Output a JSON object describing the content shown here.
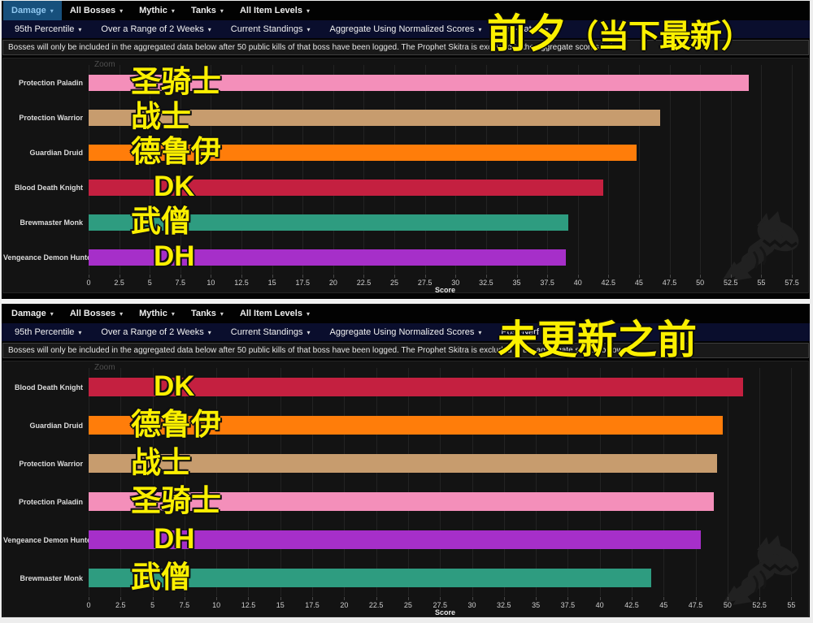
{
  "icons": {
    "caret_down": "▾",
    "watermark": "warcraftlogs-serpent-watermark"
  },
  "colors": {
    "nav_active_bg": "#17507C",
    "nav_active_text": "#8FC7F0",
    "nav_secondary_bg": "#0A0E2D",
    "annotation_yellow": "#FBF000",
    "chart_bg": "#131313"
  },
  "panels": [
    {
      "nav_primary": [
        {
          "label": "Damage",
          "active": true
        },
        {
          "label": "All Bosses",
          "active": false
        },
        {
          "label": "Mythic",
          "active": false
        },
        {
          "label": "Tanks",
          "active": false
        },
        {
          "label": "All Item Levels",
          "active": false
        }
      ],
      "nav_secondary": [
        "95th Percentile",
        "Over a Range of 2 Weeks",
        "Current Standings",
        "Aggregate Using Normalized Scores",
        "Pre-Patch"
      ],
      "notice": "Bosses will only be included in the aggregated data below after 50 public kills of that boss have been logged. The Prophet Skitra is excluded in the aggregate scores below.",
      "zoom_label": "Zoom",
      "overlay_title_parts": [
        "前夕",
        "（当下最新）"
      ]
    },
    {
      "nav_primary": [
        {
          "label": "Damage",
          "active": false
        },
        {
          "label": "All Bosses",
          "active": false
        },
        {
          "label": "Mythic",
          "active": false
        },
        {
          "label": "Tanks",
          "active": false
        },
        {
          "label": "All Item Levels",
          "active": false
        }
      ],
      "nav_secondary": [
        "95th Percentile",
        "Over a Range of 2 Weeks",
        "Current Standings",
        "Aggregate Using Normalized Scores",
        "Post-Nerf II"
      ],
      "notice": "Bosses will only be included in the aggregated data below after 50 public kills of that boss have been logged. The Prophet Skitra is excluded in the aggregate scores below.",
      "zoom_label": "Zoom",
      "overlay_title_parts": [
        "未更新之前"
      ]
    }
  ],
  "chart_data": [
    {
      "type": "bar",
      "orientation": "horizontal",
      "categories": [
        "Protection Paladin",
        "Protection Warrior",
        "Guardian Druid",
        "Blood Death Knight",
        "Brewmaster Monk",
        "Vengeance Demon Hunter"
      ],
      "values": [
        54.0,
        46.7,
        44.8,
        42.1,
        39.2,
        39.0
      ],
      "bar_colors": [
        "#F48FBA",
        "#C79C6E",
        "#FF7D0A",
        "#C42040",
        "#2E9C80",
        "#A62FC9"
      ],
      "bar_annotations": [
        "圣骑士",
        "战士",
        "德鲁伊",
        "DK",
        "武僧",
        "DH"
      ],
      "xlabel": "Score",
      "xlim": [
        0,
        57.5
      ],
      "tick_step": 2.5,
      "grid": true,
      "legend": false
    },
    {
      "type": "bar",
      "orientation": "horizontal",
      "categories": [
        "Blood Death Knight",
        "Guardian Druid",
        "Protection Warrior",
        "Protection Paladin",
        "Vengeance Demon Hunter",
        "Brewmaster Monk"
      ],
      "values": [
        51.2,
        49.6,
        49.2,
        48.9,
        47.9,
        44.0
      ],
      "bar_colors": [
        "#C42040",
        "#FF7D0A",
        "#C79C6E",
        "#F48FBA",
        "#A62FC9",
        "#2E9C80"
      ],
      "bar_annotations": [
        "DK",
        "德鲁伊",
        "战士",
        "圣骑士",
        "DH",
        "武僧"
      ],
      "xlabel": "Score",
      "xlim": [
        0,
        55
      ],
      "tick_step": 2.5,
      "grid": true,
      "legend": false
    }
  ]
}
